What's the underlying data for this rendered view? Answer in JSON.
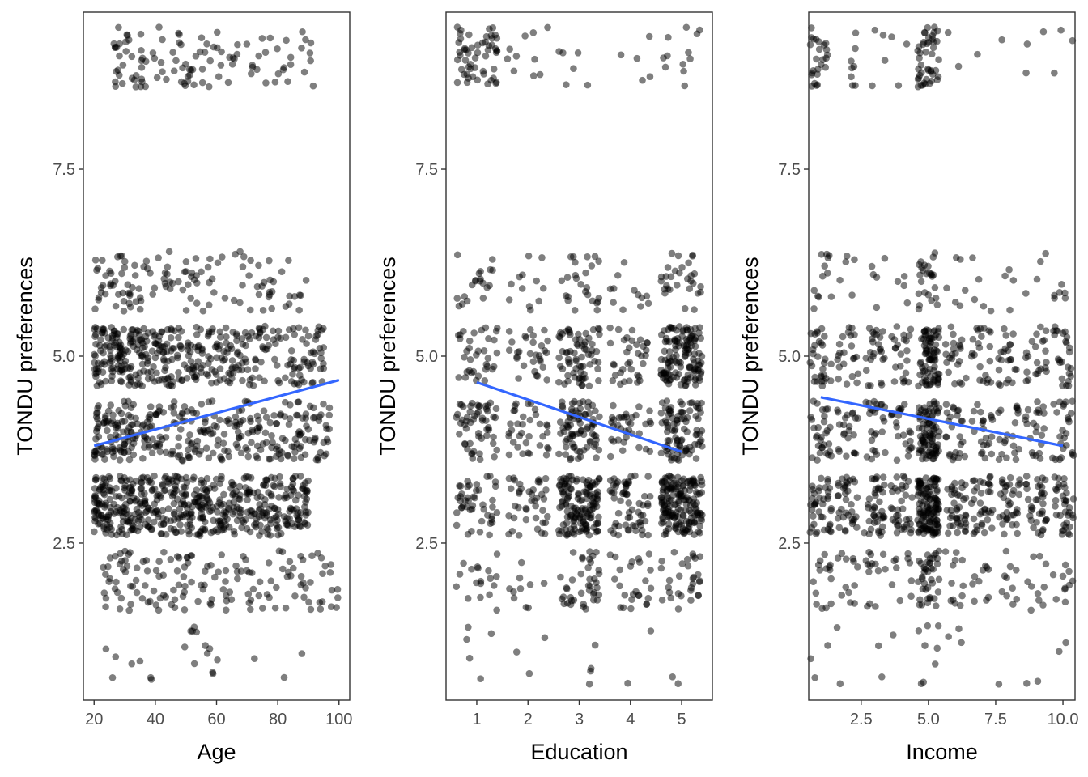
{
  "chart_data": [
    {
      "type": "scatter",
      "xlabel": "Age",
      "ylabel": "TONDU preferences",
      "xlim": [
        16.5,
        103.5
      ],
      "ylim": [
        0.4,
        9.6
      ],
      "xticks": [
        20,
        40,
        60,
        80,
        100
      ],
      "xtick_labels": [
        "20",
        "40",
        "60",
        "80",
        "100"
      ],
      "yticks": [
        2.5,
        5.0,
        7.5
      ],
      "ytick_labels": [
        "2.5",
        "5.0",
        "7.5"
      ],
      "point_color": "#000000",
      "point_opacity": 0.5,
      "trend_color": "#3366ff",
      "trend_line": {
        "x": [
          20,
          100
        ],
        "y": [
          3.8,
          4.68
        ]
      },
      "level_distribution": [
        {
          "y": 1.0,
          "x_min": 21,
          "x_max": 88,
          "count": 22
        },
        {
          "y": 2.0,
          "x_min": 23,
          "x_max": 100,
          "count": 150
        },
        {
          "y": 3.0,
          "x_min": 20,
          "x_max": 90,
          "count": 520
        },
        {
          "y": 4.0,
          "x_min": 20,
          "x_max": 97,
          "count": 330
        },
        {
          "y": 5.0,
          "x_min": 20,
          "x_max": 95,
          "count": 400
        },
        {
          "y": 6.0,
          "x_min": 20,
          "x_max": 90,
          "count": 120
        },
        {
          "y": 9.0,
          "x_min": 26,
          "x_max": 92,
          "count": 110
        }
      ],
      "grid": false
    },
    {
      "type": "scatter",
      "xlabel": "Education",
      "ylabel": "TONDU preferences",
      "xlim": [
        0.4,
        5.6
      ],
      "ylim": [
        0.4,
        9.6
      ],
      "xticks": [
        1,
        2,
        3,
        4,
        5
      ],
      "xtick_labels": [
        "1",
        "2",
        "3",
        "4",
        "5"
      ],
      "yticks": [
        2.5,
        5.0,
        7.5
      ],
      "ytick_labels": [
        "2.5",
        "5.0",
        "7.5"
      ],
      "point_color": "#000000",
      "point_opacity": 0.5,
      "trend_color": "#3366ff",
      "trend_line": {
        "x": [
          1,
          5
        ],
        "y": [
          4.65,
          3.72
        ]
      },
      "category_counts": {
        "categories": [
          1,
          2,
          3,
          4,
          5
        ],
        "levels": [
          1,
          2,
          3,
          4,
          5,
          6,
          9
        ],
        "counts": [
          [
            5,
            3,
            4,
            2,
            2
          ],
          [
            18,
            10,
            40,
            25,
            30
          ],
          [
            45,
            40,
            140,
            60,
            170
          ],
          [
            55,
            35,
            80,
            35,
            90
          ],
          [
            35,
            30,
            70,
            35,
            130
          ],
          [
            20,
            12,
            25,
            12,
            30
          ],
          [
            55,
            10,
            6,
            5,
            12
          ]
        ]
      },
      "grid": false
    },
    {
      "type": "scatter",
      "xlabel": "Income",
      "ylabel": "TONDU preferences",
      "xlim": [
        0.55,
        10.45
      ],
      "ylim": [
        0.4,
        9.6
      ],
      "xticks": [
        2.5,
        5.0,
        7.5,
        10.0
      ],
      "xtick_labels": [
        "2.5",
        "5.0",
        "7.5",
        "10.0"
      ],
      "yticks": [
        2.5,
        5.0,
        7.5
      ],
      "ytick_labels": [
        "2.5",
        "5.0",
        "7.5"
      ],
      "point_color": "#000000",
      "point_opacity": 0.5,
      "trend_color": "#3366ff",
      "trend_line": {
        "x": [
          1,
          10
        ],
        "y": [
          4.45,
          3.8
        ]
      },
      "category_counts": {
        "categories": [
          1,
          2,
          3,
          4,
          5,
          6,
          7,
          8,
          9,
          10
        ],
        "levels": [
          1,
          2,
          3,
          4,
          5,
          6,
          9
        ],
        "counts": [
          [
            3,
            2,
            2,
            1,
            8,
            3,
            0,
            1,
            2,
            2
          ],
          [
            15,
            12,
            14,
            10,
            40,
            12,
            10,
            10,
            10,
            10
          ],
          [
            40,
            35,
            40,
            35,
            130,
            40,
            35,
            35,
            35,
            35
          ],
          [
            30,
            22,
            25,
            22,
            90,
            25,
            22,
            20,
            22,
            25
          ],
          [
            30,
            22,
            25,
            22,
            80,
            22,
            22,
            22,
            22,
            25
          ],
          [
            12,
            5,
            5,
            4,
            25,
            6,
            5,
            4,
            4,
            6
          ],
          [
            25,
            8,
            4,
            3,
            45,
            2,
            1,
            1,
            3,
            3
          ]
        ]
      },
      "grid": false
    }
  ]
}
